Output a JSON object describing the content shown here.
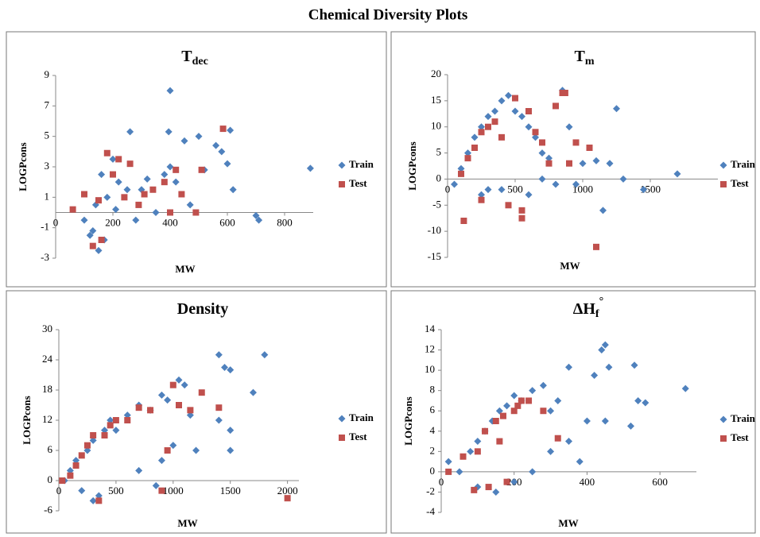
{
  "title": "Chemical Diversity Plots",
  "chart_data": [
    {
      "type": "scatter",
      "title": {
        "main": "T",
        "sub": "dec"
      },
      "xlabel": "MW",
      "ylabel": "LOGPcons",
      "xlim": [
        0,
        900
      ],
      "ylim": [
        -3,
        9
      ],
      "xticks": [
        0,
        200,
        400,
        600,
        800
      ],
      "yticks": [
        -3,
        -1,
        1,
        3,
        5,
        7,
        9
      ],
      "series": [
        {
          "name": "Train",
          "color": "#4f81bd",
          "marker": "diamond",
          "x": [
            120,
            150,
            100,
            140,
            160,
            180,
            200,
            220,
            250,
            260,
            300,
            320,
            350,
            380,
            400,
            395,
            400,
            420,
            450,
            470,
            500,
            520,
            560,
            580,
            600,
            610,
            620,
            700,
            710,
            890,
            130,
            170,
            210,
            280
          ],
          "values": [
            -1.5,
            -2.5,
            -0.5,
            0.5,
            2.5,
            1,
            3.5,
            2,
            1.5,
            5.3,
            1.5,
            2.2,
            0,
            2.5,
            8,
            5.3,
            3,
            2,
            4.7,
            0.5,
            5,
            2.8,
            4.4,
            4,
            3.2,
            5.4,
            1.5,
            -0.2,
            -0.5,
            2.9,
            -1.2,
            -1.8,
            0.2,
            -0.5
          ]
        },
        {
          "name": "Test",
          "color": "#c0504d",
          "marker": "square",
          "x": [
            60,
            100,
            130,
            160,
            180,
            200,
            220,
            240,
            260,
            290,
            310,
            340,
            380,
            400,
            420,
            440,
            490,
            510,
            585,
            150
          ],
          "values": [
            0.2,
            1.2,
            -2.2,
            -1.8,
            3.9,
            2.5,
            3.5,
            1,
            3.2,
            0.5,
            1.2,
            1.5,
            2,
            0,
            2.8,
            1.2,
            0,
            2.8,
            5.5,
            0.8
          ]
        }
      ]
    },
    {
      "type": "scatter",
      "title": {
        "main": "T",
        "sub": "m"
      },
      "xlabel": "MW",
      "ylabel": "LOGPcons",
      "xlim": [
        0,
        2000
      ],
      "ylim": [
        -15,
        20
      ],
      "xticks": [
        0,
        500,
        1000,
        1500
      ],
      "yticks": [
        -15,
        -10,
        -5,
        0,
        5,
        10,
        15,
        20
      ],
      "series": [
        {
          "name": "Train",
          "color": "#4f81bd",
          "marker": "diamond",
          "x": [
            50,
            100,
            150,
            200,
            250,
            300,
            350,
            400,
            450,
            500,
            550,
            600,
            650,
            700,
            750,
            800,
            850,
            900,
            950,
            1000,
            1100,
            1150,
            1200,
            1250,
            1300,
            1450,
            1700,
            300,
            400,
            600,
            250,
            700
          ],
          "values": [
            -1,
            2,
            5,
            8,
            10,
            12,
            13,
            15,
            16,
            13,
            12,
            10,
            8,
            5,
            4,
            -1,
            17,
            10,
            -1,
            3,
            3.5,
            -6,
            3,
            13.5,
            0,
            -2,
            1,
            -2,
            -2,
            -3,
            -3,
            0
          ]
        },
        {
          "name": "Test",
          "color": "#c0504d",
          "marker": "square",
          "x": [
            100,
            150,
            200,
            250,
            300,
            350,
            400,
            450,
            500,
            550,
            600,
            650,
            700,
            750,
            800,
            850,
            870,
            900,
            950,
            1050,
            1100,
            120,
            250,
            550
          ],
          "values": [
            1,
            4,
            6,
            9,
            10,
            11,
            8,
            -5,
            15.5,
            -6,
            13,
            9,
            7,
            3,
            14,
            16.5,
            16.5,
            3,
            7,
            6,
            -13,
            -8,
            -4,
            -7.5
          ]
        }
      ]
    },
    {
      "type": "scatter",
      "title": {
        "main": "Density"
      },
      "xlabel": "MW",
      "ylabel": "LOGPcons",
      "xlim": [
        0,
        2100
      ],
      "ylim": [
        -6,
        30
      ],
      "xticks": [
        0,
        500,
        1000,
        1500,
        2000
      ],
      "yticks": [
        -6,
        0,
        6,
        12,
        18,
        24,
        30
      ],
      "series": [
        {
          "name": "Train",
          "color": "#4f81bd",
          "marker": "diamond",
          "x": [
            50,
            100,
            150,
            200,
            250,
            300,
            350,
            400,
            450,
            500,
            600,
            700,
            800,
            850,
            900,
            950,
            1000,
            1050,
            1100,
            1150,
            1200,
            1400,
            1450,
            1500,
            1500,
            1500,
            1700,
            1800,
            1400,
            700,
            900,
            300
          ],
          "values": [
            0,
            2,
            4,
            -2,
            6,
            8,
            -3,
            10,
            12,
            10,
            13,
            15,
            14,
            -1,
            17,
            16,
            7,
            20,
            19,
            13,
            6,
            25,
            22.5,
            22,
            6,
            10,
            17.5,
            25,
            12,
            2,
            4,
            -4
          ]
        },
        {
          "name": "Test",
          "color": "#c0504d",
          "marker": "square",
          "x": [
            30,
            100,
            150,
            200,
            250,
            300,
            350,
            400,
            450,
            500,
            600,
            700,
            800,
            900,
            1000,
            1050,
            1150,
            1250,
            1400,
            2000,
            950
          ],
          "values": [
            0,
            1,
            3,
            5,
            7,
            9,
            -4,
            9,
            11,
            12,
            12,
            14.5,
            14,
            -2,
            19,
            15,
            14,
            17.5,
            14.5,
            -3.5,
            6
          ]
        }
      ]
    },
    {
      "type": "scatter",
      "title": {
        "main": "ΔH",
        "sub": "f",
        "sup": "°"
      },
      "xlabel": "MW",
      "ylabel": "LOGPcons",
      "xlim": [
        0,
        700
      ],
      "ylim": [
        -4,
        14
      ],
      "xticks": [
        0,
        200,
        400,
        600
      ],
      "yticks": [
        -4,
        -2,
        0,
        2,
        4,
        6,
        8,
        10,
        12,
        14
      ],
      "series": [
        {
          "name": "Train",
          "color": "#4f81bd",
          "marker": "diamond",
          "x": [
            20,
            50,
            80,
            100,
            120,
            140,
            160,
            180,
            200,
            220,
            250,
            280,
            300,
            320,
            350,
            400,
            420,
            440,
            450,
            450,
            460,
            520,
            530,
            540,
            560,
            670,
            200,
            250,
            300,
            350,
            100,
            150,
            380
          ],
          "values": [
            1,
            0,
            2,
            3,
            4,
            5,
            6,
            6.5,
            7.5,
            7,
            8,
            8.5,
            6,
            7,
            10.3,
            5,
            9.5,
            12,
            12.5,
            5,
            10.3,
            4.5,
            10.5,
            7,
            6.8,
            8.2,
            -1,
            0,
            2,
            3,
            -1.5,
            -2,
            1
          ]
        },
        {
          "name": "Test",
          "color": "#c0504d",
          "marker": "square",
          "x": [
            20,
            60,
            100,
            120,
            150,
            170,
            200,
            220,
            240,
            280,
            320,
            90,
            130,
            180,
            210,
            160
          ],
          "values": [
            0,
            1.5,
            2,
            4,
            5,
            5.5,
            6,
            7,
            7,
            6,
            3.3,
            -1.8,
            -1.5,
            -1,
            6.5,
            3
          ]
        }
      ]
    }
  ]
}
